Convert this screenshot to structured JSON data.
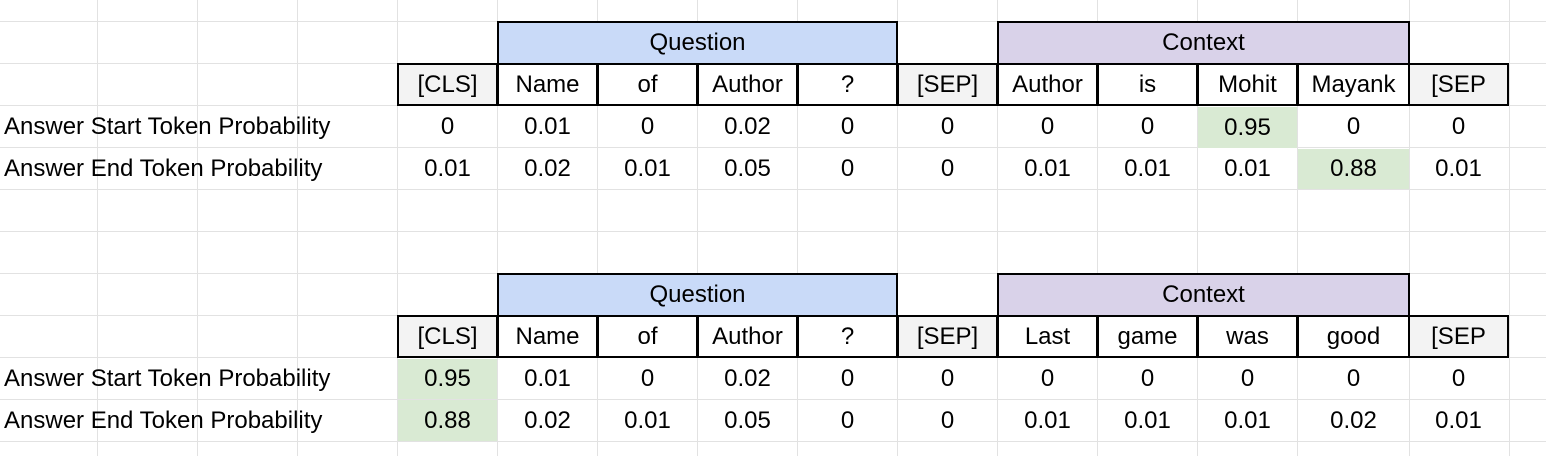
{
  "colors": {
    "question_header": "#c9daf8",
    "context_header": "#d9d2e9",
    "highlight": "#d9ead3",
    "sep_fill": "#f3f3f3",
    "gridline": "#e2e2e2"
  },
  "tables": [
    {
      "group_headers": {
        "question": "Question",
        "context": "Context"
      },
      "tokens": [
        "[CLS]",
        "Name",
        "of",
        "Author",
        "?",
        "[SEP]",
        "Author",
        "is",
        "Mohit",
        "Mayank",
        "[SEP"
      ],
      "rows": [
        {
          "label": "Answer Start Token Probability",
          "values": [
            "0",
            "0.01",
            "0",
            "0.02",
            "0",
            "0",
            "0",
            "0",
            "0.95",
            "0",
            "0"
          ]
        },
        {
          "label": "Answer End Token Probability",
          "values": [
            "0.01",
            "0.02",
            "0.01",
            "0.05",
            "0",
            "0",
            "0.01",
            "0.01",
            "0.01",
            "0.88",
            "0.01"
          ]
        }
      ]
    },
    {
      "group_headers": {
        "question": "Question",
        "context": "Context"
      },
      "tokens": [
        "[CLS]",
        "Name",
        "of",
        "Author",
        "?",
        "[SEP]",
        "Last",
        "game",
        "was",
        "good",
        "[SEP"
      ],
      "rows": [
        {
          "label": "Answer Start Token Probability",
          "values": [
            "0.95",
            "0.01",
            "0",
            "0.02",
            "0",
            "0",
            "0",
            "0",
            "0",
            "0",
            "0"
          ]
        },
        {
          "label": "Answer End Token Probability",
          "values": [
            "0.88",
            "0.02",
            "0.01",
            "0.05",
            "0",
            "0",
            "0.01",
            "0.01",
            "0.01",
            "0.02",
            "0.01"
          ]
        }
      ]
    }
  ]
}
